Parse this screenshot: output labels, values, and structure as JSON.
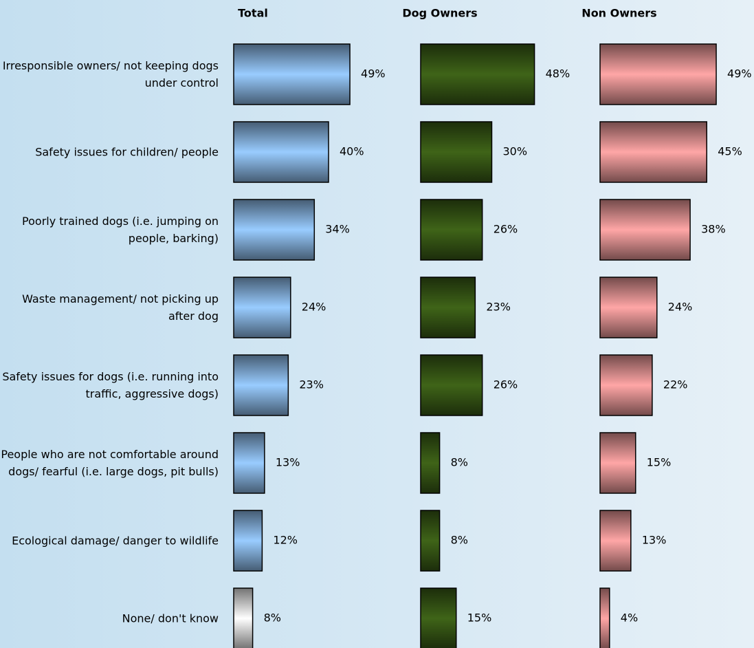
{
  "chart_data": {
    "type": "bar",
    "orientation": "horizontal",
    "categories": [
      "Irresponsible owners/ not keeping dogs under control",
      "Safety issues for children/ people",
      "Poorly trained dogs (i.e. jumping on people, barking)",
      "Waste management/ not picking up after dog",
      "Safety issues for dogs (i.e. running into traffic, aggressive dogs)",
      "People who are not comfortable around dogs/ fearful (i.e. large dogs, pit bulls)",
      "Ecological damage/ danger to wildlife",
      "None/ don't know"
    ],
    "series": [
      {
        "name": "Total",
        "color": "#99ccff",
        "colors": [
          "#99ccff",
          "#99ccff",
          "#99ccff",
          "#99ccff",
          "#99ccff",
          "#99ccff",
          "#99ccff",
          "#ffffff"
        ],
        "values": [
          49,
          40,
          34,
          24,
          23,
          13,
          12,
          8
        ],
        "value_labels": [
          "49%",
          "40%",
          "34%",
          "24%",
          "23%",
          "13%",
          "12%",
          "8%"
        ]
      },
      {
        "name": "Dog Owners",
        "color": "#3f6418",
        "values": [
          48,
          30,
          26,
          23,
          26,
          8,
          8,
          15
        ],
        "value_labels": [
          "48%",
          "30%",
          "26%",
          "23%",
          "26%",
          "8%",
          "8%",
          "15%"
        ]
      },
      {
        "name": "Non Owners",
        "color": "#ffa6a6",
        "values": [
          49,
          45,
          38,
          24,
          22,
          15,
          13,
          4
        ],
        "value_labels": [
          "49%",
          "45%",
          "38%",
          "24%",
          "22%",
          "15%",
          "13%",
          "4%"
        ]
      }
    ]
  }
}
